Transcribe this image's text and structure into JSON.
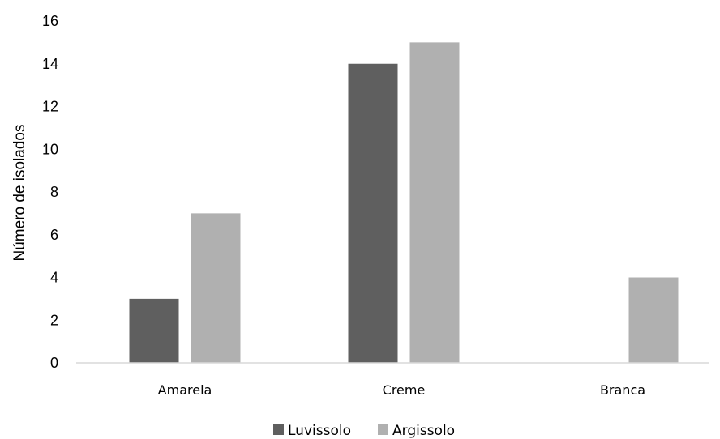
{
  "chart_data": {
    "type": "bar",
    "title": "",
    "xlabel": "",
    "ylabel": "Número de isolados",
    "categories": [
      "Amarela",
      "Creme",
      "Branca"
    ],
    "series": [
      {
        "name": "Luvissolo",
        "values": [
          3,
          14,
          0
        ],
        "color": "#5f5f5f"
      },
      {
        "name": "Argissolo",
        "values": [
          7,
          15,
          4
        ],
        "color": "#b0b0b0"
      }
    ],
    "ylim": [
      0,
      16
    ],
    "yticks": [
      0,
      2,
      4,
      6,
      8,
      10,
      12,
      14,
      16
    ],
    "grid": false,
    "legend_position": "bottom-center"
  }
}
